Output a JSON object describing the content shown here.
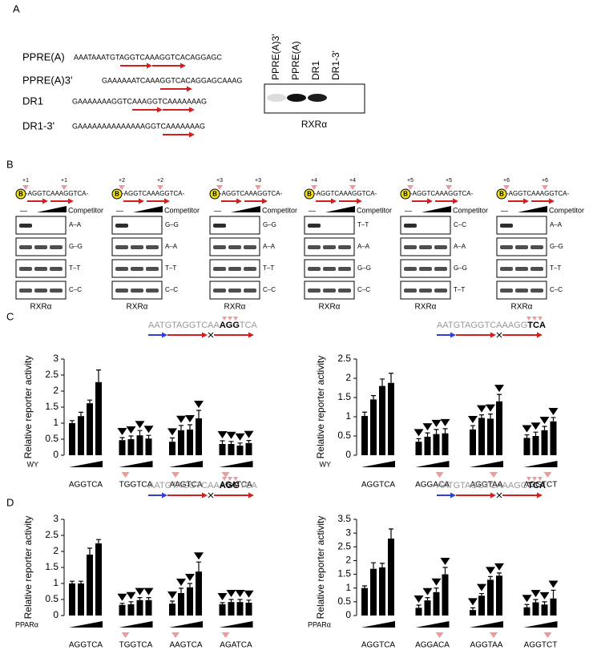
{
  "panels": {
    "a": "A",
    "b": "B",
    "c": "C",
    "d": "D"
  },
  "panel_a": {
    "sequences": [
      {
        "name": "PPRE(A)",
        "seq": "AAATAAATGTAGGTCAAAGGTCACAGGAGC"
      },
      {
        "name": "PPRE(A)3'",
        "seq": "GAAAAAATCAAAGGTCACAGGAGCAAAG"
      },
      {
        "name": "DR1",
        "seq": "GAAAAAAAGGTCAAAGGTCAAAAAAAG"
      },
      {
        "name": "DR1-3'",
        "seq": "GAAAAAAAAAAAAAAGGTCAAAAAAAG"
      }
    ],
    "lanes": [
      "PPRE(A)3'",
      "PPRE(A)",
      "DR1",
      "DR1-3'"
    ],
    "blot_label": "RXRα"
  },
  "panel_b": {
    "gels": [
      {
        "marker": "B",
        "shifts": [
          "+1",
          "+1"
        ],
        "probe": "-AGGTCAAAGGTCA-",
        "minus": "—",
        "competitor": "Competitor",
        "rows": [
          "A–A",
          "G–G",
          "T–T",
          "C–C"
        ],
        "label": "RXRα"
      },
      {
        "marker": "B",
        "shifts": [
          "+2",
          "+2"
        ],
        "probe": "-AGGTCAAAGGTCA-",
        "minus": "—",
        "competitor": "Competitor",
        "rows": [
          "G–G",
          "A–A",
          "T–T",
          "C–C"
        ],
        "label": "RXRα"
      },
      {
        "marker": "B",
        "shifts": [
          "+3",
          "+3"
        ],
        "probe": "-AGGTCAAAGGTCA-",
        "minus": "—",
        "competitor": "Competitor",
        "rows": [
          "G–G",
          "A–A",
          "T–T",
          "C–C"
        ],
        "label": "RXRα"
      },
      {
        "marker": "B",
        "shifts": [
          "+4",
          "+4"
        ],
        "probe": "-AGGTCAAAGGTCA-",
        "minus": "—",
        "competitor": "Competitor",
        "rows": [
          "T–T",
          "A–A",
          "G–G",
          "C–C"
        ],
        "label": "RXRα"
      },
      {
        "marker": "B",
        "shifts": [
          "+5",
          "+5"
        ],
        "probe": "-AGGTCAAAGGTCA-",
        "minus": "—",
        "competitor": "Competitor",
        "rows": [
          "C–C",
          "A–A",
          "G–G",
          "T–T"
        ],
        "label": "RXRα"
      },
      {
        "marker": "B",
        "shifts": [
          "+6",
          "+6"
        ],
        "probe": "-AGGTCAAAGGTCA-",
        "minus": "—",
        "competitor": "Competitor",
        "rows": [
          "A–A",
          "G–G",
          "T–T",
          "C–C"
        ],
        "label": "RXRα"
      }
    ]
  },
  "chart_data": [
    {
      "type": "bar",
      "ylabel": "Relative reporter activity",
      "ylim": [
        0,
        3
      ],
      "yticks": [
        0,
        0.5,
        1,
        1.5,
        2,
        2.5,
        3
      ],
      "treatment": "WY",
      "color": "#000000",
      "inset": [
        "AATGTAGGTCAA",
        "AGG",
        "TCA"
      ],
      "groups": [
        {
          "name": "AGGTCA",
          "values": [
            1.0,
            1.22,
            1.62,
            2.28
          ],
          "errors": [
            0.08,
            0.12,
            0.1,
            0.38
          ]
        },
        {
          "name": "TGGTCA",
          "values": [
            0.47,
            0.5,
            0.62,
            0.52
          ],
          "errors": [
            0.08,
            0.1,
            0.15,
            0.1
          ]
        },
        {
          "name": "AAGTCA",
          "values": [
            0.42,
            0.78,
            0.8,
            1.15
          ],
          "errors": [
            0.12,
            0.15,
            0.15,
            0.25
          ]
        },
        {
          "name": "AGATCA",
          "values": [
            0.35,
            0.35,
            0.3,
            0.38
          ],
          "errors": [
            0.1,
            0.08,
            0.08,
            0.08
          ]
        }
      ]
    },
    {
      "type": "bar",
      "ylabel": "Relative reporter activity",
      "ylim": [
        0,
        2.5
      ],
      "yticks": [
        0,
        0.5,
        1,
        1.5,
        2,
        2.5
      ],
      "treatment": "WY",
      "color": "#000000",
      "inset": [
        "AATGTAGGTCAAAGG",
        "TCA"
      ],
      "groups": [
        {
          "name": "AGGTCA",
          "values": [
            1.02,
            1.45,
            1.8,
            1.88
          ],
          "errors": [
            0.1,
            0.1,
            0.18,
            0.25
          ]
        },
        {
          "name": "AGGACA",
          "values": [
            0.35,
            0.48,
            0.55,
            0.57
          ],
          "errors": [
            0.08,
            0.1,
            0.12,
            0.12
          ]
        },
        {
          "name": "AGGTAA",
          "values": [
            0.67,
            0.97,
            0.95,
            1.4
          ],
          "errors": [
            0.1,
            0.08,
            0.12,
            0.18
          ]
        },
        {
          "name": "AGGTCT",
          "values": [
            0.45,
            0.5,
            0.65,
            0.88
          ],
          "errors": [
            0.08,
            0.1,
            0.1,
            0.1
          ]
        }
      ]
    },
    {
      "type": "bar",
      "ylabel": "Relative reporter activity",
      "ylim": [
        0,
        3
      ],
      "yticks": [
        0,
        0.5,
        1,
        1.5,
        2,
        2.5,
        3
      ],
      "treatment": "PPARα",
      "color": "#000000",
      "inset": [
        "AATGTAGGTCAA",
        "AGG",
        "TCA"
      ],
      "groups": [
        {
          "name": "AGGTCA",
          "values": [
            1.0,
            1.0,
            1.9,
            2.25
          ],
          "errors": [
            0.07,
            0.07,
            0.2,
            0.12
          ]
        },
        {
          "name": "TGGTCA",
          "values": [
            0.33,
            0.35,
            0.48,
            0.48
          ],
          "errors": [
            0.05,
            0.08,
            0.08,
            0.08
          ]
        },
        {
          "name": "AAGTCA",
          "values": [
            0.37,
            0.7,
            0.88,
            1.37
          ],
          "errors": [
            0.08,
            0.15,
            0.12,
            0.3
          ]
        },
        {
          "name": "AGATCA",
          "values": [
            0.35,
            0.42,
            0.42,
            0.4
          ],
          "errors": [
            0.05,
            0.08,
            0.08,
            0.08
          ]
        }
      ]
    },
    {
      "type": "bar",
      "ylabel": "Relative reporter activity",
      "ylim": [
        0,
        3.5
      ],
      "yticks": [
        0,
        0.5,
        1,
        1.5,
        2,
        2.5,
        3,
        3.5
      ],
      "treatment": "PPARα",
      "color": "#000000",
      "inset": [
        "AATGTAGGTCAAAGG",
        "TCA"
      ],
      "groups": [
        {
          "name": "AGGTCA",
          "values": [
            1.0,
            1.7,
            1.75,
            2.8
          ],
          "errors": [
            0.08,
            0.22,
            0.15,
            0.35
          ]
        },
        {
          "name": "AGGACA",
          "values": [
            0.28,
            0.55,
            0.85,
            1.5
          ],
          "errors": [
            0.1,
            0.1,
            0.15,
            0.25
          ]
        },
        {
          "name": "AGGTAA",
          "values": [
            0.2,
            0.72,
            1.3,
            1.45
          ],
          "errors": [
            0.08,
            0.08,
            0.12,
            0.1
          ]
        },
        {
          "name": "AGGTCT",
          "values": [
            0.3,
            0.48,
            0.4,
            0.62
          ],
          "errors": [
            0.1,
            0.1,
            0.1,
            0.3
          ]
        }
      ]
    }
  ]
}
